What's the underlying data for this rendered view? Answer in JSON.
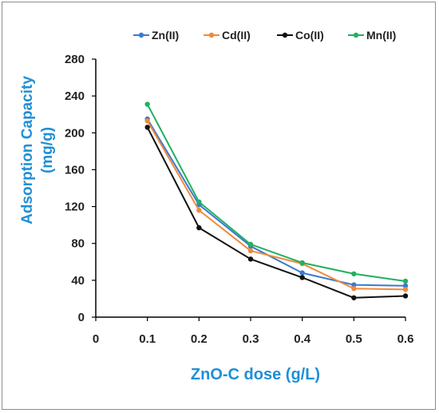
{
  "chart_data": {
    "type": "line",
    "x": [
      0.1,
      0.2,
      0.3,
      0.4,
      0.5,
      0.6
    ],
    "series": [
      {
        "name": "Zn(II)",
        "color": "#3a7ad1",
        "values": [
          215,
          122,
          77,
          48,
          35,
          34
        ]
      },
      {
        "name": "Cd(II)",
        "color": "#f08a3a",
        "values": [
          213,
          116,
          72,
          58,
          31,
          30
        ]
      },
      {
        "name": "Co(II)",
        "color": "#111111",
        "values": [
          206,
          97,
          63,
          43,
          21,
          23
        ]
      },
      {
        "name": "Mn(II)",
        "color": "#22b060",
        "values": [
          231,
          125,
          79,
          59,
          47,
          39
        ]
      }
    ],
    "xlabel": "ZnO-C dose (g/L)",
    "ylabel_line1": "Adsorption Capacity",
    "ylabel_line2": "(mg/g)",
    "xlim": [
      0,
      0.6
    ],
    "ylim": [
      0,
      280
    ],
    "xticks": [
      0,
      0.1,
      0.2,
      0.3,
      0.4,
      0.5,
      0.6
    ],
    "xtick_labels": [
      "0",
      "0.1",
      "0.2",
      "0.3",
      "0.4",
      "0.5",
      "0.6"
    ],
    "yticks": [
      0,
      40,
      80,
      120,
      160,
      200,
      240,
      280
    ],
    "ytick_labels": [
      "0",
      "40",
      "80",
      "120",
      "160",
      "200",
      "240",
      "280"
    ],
    "grid": false,
    "legend_position": "top"
  }
}
